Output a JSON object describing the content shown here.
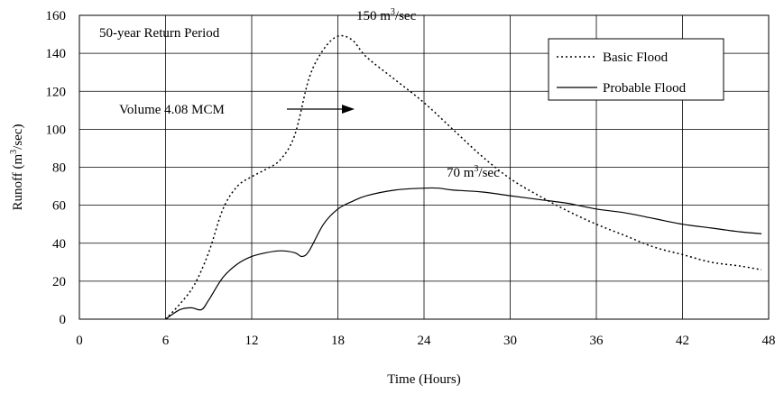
{
  "chart_data": {
    "type": "line",
    "xlabel": "Time (Hours)",
    "ylabel_base": "Runoff (m",
    "ylabel_sup": "3",
    "ylabel_tail": "/sec)",
    "xlim": [
      0,
      48
    ],
    "ylim": [
      0,
      160
    ],
    "xticks": [
      0,
      6,
      12,
      18,
      24,
      30,
      36,
      42,
      48
    ],
    "yticks": [
      0,
      20,
      40,
      60,
      80,
      100,
      120,
      140,
      160
    ],
    "grid": true,
    "legend_position": "top-right",
    "series": [
      {
        "name": "Basic Flood",
        "style": "dotted",
        "color": "#000000",
        "x": [
          6,
          7,
          8,
          9,
          10,
          11,
          12,
          13,
          14,
          15,
          16,
          17,
          18,
          19,
          20,
          22,
          24,
          26,
          28,
          30,
          32,
          34,
          36,
          38,
          40,
          42,
          44,
          46,
          47.5
        ],
        "y": [
          0,
          8,
          18,
          35,
          58,
          70,
          75,
          79,
          84,
          97,
          127,
          142,
          149,
          147,
          138,
          126,
          114,
          100,
          86,
          74,
          65,
          57,
          50,
          44,
          38,
          34,
          30,
          28,
          26
        ]
      },
      {
        "name": "Probable Flood",
        "style": "solid",
        "color": "#000000",
        "x": [
          6,
          7,
          7.8,
          8.5,
          9,
          10,
          11,
          12,
          13,
          14,
          15,
          15.5,
          16,
          17,
          18,
          19,
          20,
          22,
          24,
          25,
          26,
          28,
          30,
          32,
          34,
          36,
          38,
          40,
          42,
          44,
          46,
          47.5
        ],
        "y": [
          0,
          5,
          6,
          5,
          10,
          22,
          29,
          33,
          35,
          36,
          35,
          33,
          36,
          50,
          58,
          62,
          65,
          68,
          69,
          69,
          68,
          67,
          65,
          63,
          61,
          58,
          56,
          53,
          50,
          48,
          46,
          45
        ]
      }
    ],
    "annotations": {
      "return_period": "50-year Return Period",
      "volume": "Volume 4.08 MCM",
      "peak_basic_pre": "150 m",
      "peak_basic_sup": "3",
      "peak_basic_post": "/sec",
      "peak_probable_pre": "70 m",
      "peak_probable_sup": "3",
      "peak_probable_post": "/sec"
    }
  }
}
